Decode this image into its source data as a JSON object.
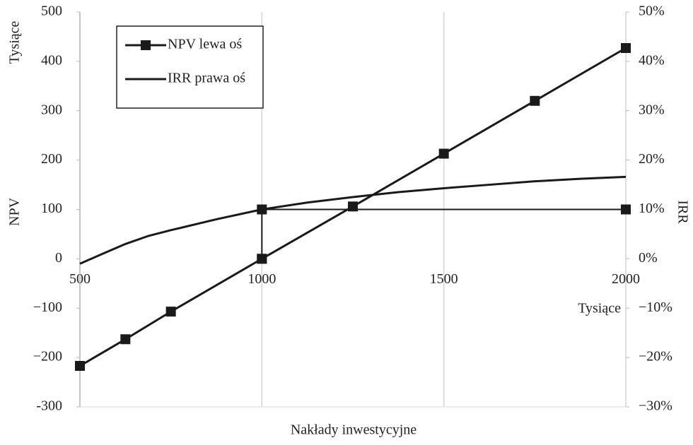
{
  "chart_data": {
    "type": "line",
    "x_label": "Nakłady inwestycyjne",
    "x_unit": "Tysiące",
    "y_label": "NPV",
    "y_unit": "Tysiące",
    "y2_label": "IRR",
    "xlim": [
      500,
      2000
    ],
    "xticks": [
      500,
      1000,
      1500,
      2000
    ],
    "ylim": [
      -300,
      500
    ],
    "yticks": [
      -300,
      {
        "value": -200,
        "label": "−200"
      },
      {
        "value": -100,
        "label": "−100"
      },
      0,
      100,
      200,
      300,
      400,
      500
    ],
    "y2lim": [
      -30,
      50
    ],
    "y2ticks": [
      {
        "value": -30,
        "label": "−30%"
      },
      {
        "value": -20,
        "label": "−20%"
      },
      {
        "value": -10,
        "label": "−10%"
      },
      {
        "value": 0,
        "label": "0%"
      },
      {
        "value": 10,
        "label": "10%"
      },
      {
        "value": 20,
        "label": "20%"
      },
      {
        "value": 30,
        "label": "30%"
      },
      {
        "value": 40,
        "label": "40%"
      },
      {
        "value": 50,
        "label": "50%"
      }
    ],
    "grid": "x",
    "legend": "top-left",
    "series": [
      {
        "name": "NPV lewa oś",
        "color": "#1a1a1a",
        "marker": "square",
        "x": [
          500,
          625,
          750,
          1000,
          1250,
          1500,
          1750,
          2000
        ],
        "values": [
          -217,
          -163,
          -107,
          0,
          106,
          213,
          320,
          427
        ]
      },
      {
        "name": "IRR prawa oś",
        "color": "#1a1a1a",
        "axis": "y2",
        "x": [
          500,
          562,
          625,
          687,
          750,
          875,
          1000,
          1125,
          1250,
          1375,
          1500,
          1625,
          1750,
          1875,
          2000
        ],
        "values": [
          -1,
          1,
          3,
          4.6,
          5.8,
          8,
          10,
          11.4,
          12.5,
          13.5,
          14.3,
          15,
          15.7,
          16.2,
          16.6
        ]
      },
      {
        "color": "#1a1a1a",
        "marker": "square",
        "x": [
          1000,
          1000,
          2000
        ],
        "values": [
          0,
          100,
          100
        ]
      }
    ]
  }
}
